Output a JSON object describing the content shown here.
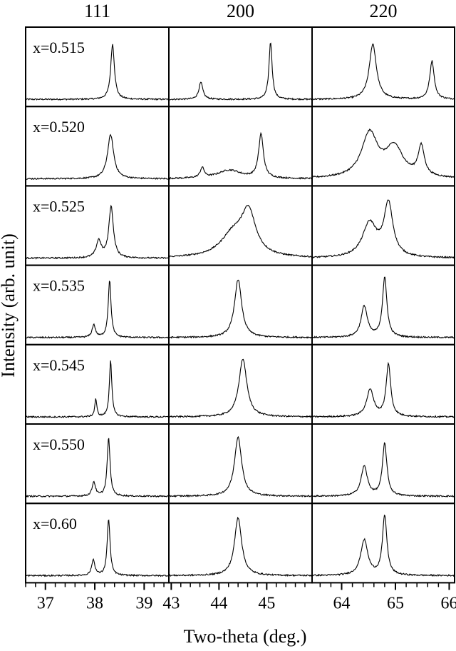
{
  "chart_data": {
    "type": "line",
    "title": "",
    "xlabel": "Two-theta (deg.)",
    "ylabel": "Intensity (arb. unit)",
    "columns": [
      {
        "reflection": "111",
        "xlim": [
          36.6,
          39.5
        ],
        "ticks": [
          37,
          38,
          39
        ],
        "tick_labels": [
          "37",
          "38",
          "39"
        ],
        "minor_step": 0.2
      },
      {
        "reflection": "200",
        "xlim": [
          42.95,
          45.95
        ],
        "ticks": [
          43,
          44,
          45
        ],
        "tick_labels": [
          "43",
          "44",
          "45"
        ],
        "minor_step": 0.2
      },
      {
        "reflection": "220",
        "xlim": [
          63.45,
          66.1
        ],
        "ticks": [
          64,
          65,
          66
        ],
        "tick_labels": [
          "64",
          "65",
          "66"
        ],
        "minor_step": 0.2
      }
    ],
    "ylim": [
      0,
      1
    ],
    "samples": [
      {
        "label": "x=0.515",
        "peaks": [
          [
            {
              "x": 38.36,
              "h": 0.78,
              "w": 0.045
            }
          ],
          [
            {
              "x": 43.62,
              "h": 0.24,
              "w": 0.05
            },
            {
              "x": 45.08,
              "h": 0.81,
              "w": 0.04
            }
          ],
          [
            {
              "x": 64.58,
              "h": 0.78,
              "w": 0.08
            },
            {
              "x": 65.68,
              "h": 0.54,
              "w": 0.05
            }
          ]
        ]
      },
      {
        "label": "x=0.520",
        "peaks": [
          [
            {
              "x": 38.32,
              "h": 0.62,
              "w": 0.075
            }
          ],
          [
            {
              "x": 43.65,
              "h": 0.14,
              "w": 0.05
            },
            {
              "x": 44.22,
              "h": 0.12,
              "w": 0.3
            },
            {
              "x": 44.88,
              "h": 0.62,
              "w": 0.06
            }
          ],
          [
            {
              "x": 64.52,
              "h": 0.62,
              "w": 0.18
            },
            {
              "x": 64.98,
              "h": 0.42,
              "w": 0.2
            },
            {
              "x": 65.48,
              "h": 0.42,
              "w": 0.07
            }
          ]
        ]
      },
      {
        "label": "x=0.525",
        "peaks": [
          [
            {
              "x": 38.08,
              "h": 0.24,
              "w": 0.06
            },
            {
              "x": 38.33,
              "h": 0.73,
              "w": 0.055
            }
          ],
          [
            {
              "x": 44.3,
              "h": 0.32,
              "w": 0.32
            },
            {
              "x": 44.62,
              "h": 0.58,
              "w": 0.18
            }
          ],
          [
            {
              "x": 64.52,
              "h": 0.48,
              "w": 0.16
            },
            {
              "x": 64.87,
              "h": 0.74,
              "w": 0.1
            }
          ]
        ]
      },
      {
        "label": "x=0.535",
        "peaks": [
          [
            {
              "x": 37.98,
              "h": 0.18,
              "w": 0.04
            },
            {
              "x": 38.3,
              "h": 0.8,
              "w": 0.035
            }
          ],
          [
            {
              "x": 44.4,
              "h": 0.82,
              "w": 0.09
            }
          ],
          [
            {
              "x": 64.42,
              "h": 0.44,
              "w": 0.07
            },
            {
              "x": 64.8,
              "h": 0.84,
              "w": 0.05
            }
          ]
        ]
      },
      {
        "label": "x=0.545",
        "peaks": [
          [
            {
              "x": 38.02,
              "h": 0.25,
              "w": 0.025
            },
            {
              "x": 38.32,
              "h": 0.8,
              "w": 0.03
            }
          ],
          [
            {
              "x": 44.5,
              "h": 0.82,
              "w": 0.1
            }
          ],
          [
            {
              "x": 64.53,
              "h": 0.38,
              "w": 0.08
            },
            {
              "x": 64.87,
              "h": 0.74,
              "w": 0.05
            }
          ]
        ]
      },
      {
        "label": "x=0.550",
        "peaks": [
          [
            {
              "x": 37.98,
              "h": 0.2,
              "w": 0.04
            },
            {
              "x": 38.28,
              "h": 0.82,
              "w": 0.035
            }
          ],
          [
            {
              "x": 44.4,
              "h": 0.84,
              "w": 0.09
            }
          ],
          [
            {
              "x": 64.42,
              "h": 0.42,
              "w": 0.07
            },
            {
              "x": 64.8,
              "h": 0.74,
              "w": 0.05
            }
          ]
        ]
      },
      {
        "label": "x=0.60",
        "peaks": [
          [
            {
              "x": 37.97,
              "h": 0.22,
              "w": 0.04
            },
            {
              "x": 38.28,
              "h": 0.8,
              "w": 0.035
            }
          ],
          [
            {
              "x": 44.4,
              "h": 0.82,
              "w": 0.09
            }
          ],
          [
            {
              "x": 64.42,
              "h": 0.5,
              "w": 0.08
            },
            {
              "x": 64.8,
              "h": 0.84,
              "w": 0.05
            }
          ]
        ]
      }
    ],
    "baseline": 0.04,
    "noise": 0.01,
    "grid": false,
    "legend": "none",
    "line_color": "#000000"
  }
}
